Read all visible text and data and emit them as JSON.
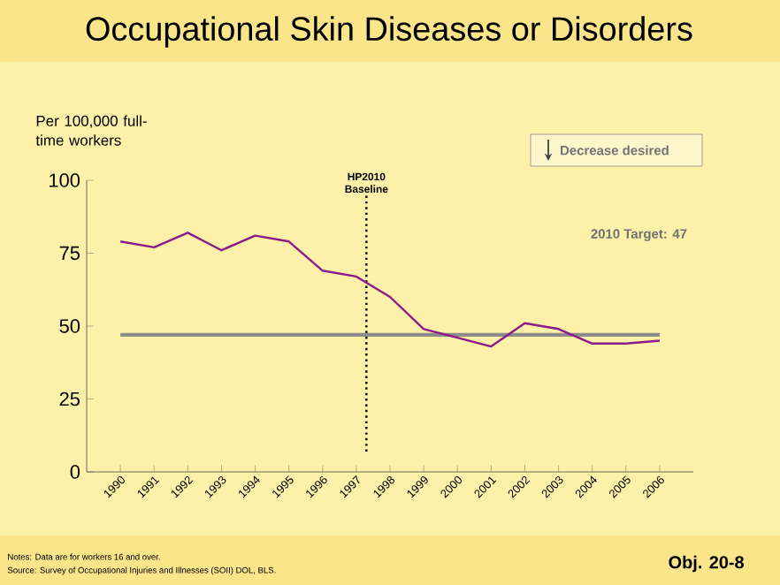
{
  "chart_data": {
    "type": "line",
    "title": "Occupational Skin Diseases or Disorders",
    "ylabel": "Per 100,000 full-time workers",
    "x": [
      1990,
      1991,
      1992,
      1993,
      1994,
      1995,
      1996,
      1997,
      1998,
      1999,
      2000,
      2001,
      2002,
      2003,
      2004,
      2005,
      2006
    ],
    "series": [
      {
        "color": "#8b1a8b",
        "values": [
          79,
          77,
          82,
          76,
          81,
          79,
          69,
          67,
          60,
          49,
          46,
          43,
          51,
          49,
          44,
          44,
          45
        ]
      }
    ],
    "xlim": [
      1989,
      2007
    ],
    "xticks": [
      1990,
      1991,
      1992,
      1993,
      1994,
      1995,
      1996,
      1997,
      1998,
      1999,
      2000,
      2001,
      2002,
      2003,
      2004,
      2005,
      2006
    ],
    "ylim": [
      0,
      100
    ],
    "yticks": [
      0,
      25,
      50,
      75,
      100
    ],
    "ref_lines": [
      {
        "axis": "x",
        "value": 1997.3,
        "label": "HP2010 Baseline",
        "color": "#000000",
        "line_style": "dotted"
      },
      {
        "axis": "y",
        "value": 47,
        "label": "2010 Target: 47",
        "color": "#8c8c8c",
        "line_style": "solid"
      }
    ],
    "annotations": [
      "Decrease desired",
      "Notes: Data are for workers 16 and over.",
      "Source: Survey of Occupational Injuries and Illnesses (SOII) DOL, BLS.",
      "Obj. 20-8"
    ],
    "grid": false,
    "marker": "none",
    "line_style": "solid"
  }
}
